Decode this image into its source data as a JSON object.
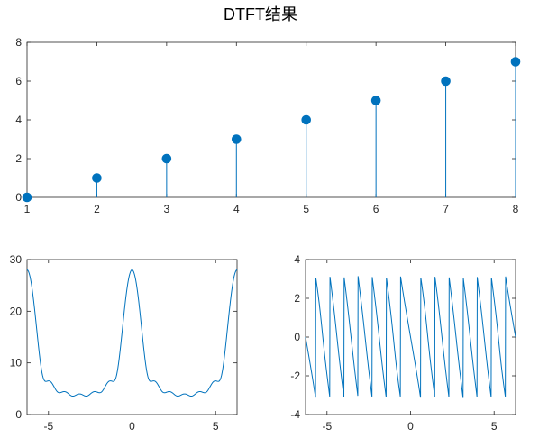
{
  "figure": {
    "title": "DTFT结果",
    "background": "#ffffff"
  },
  "colors": {
    "series": "#0072BD",
    "axis": "#262626"
  },
  "chart_data": [
    {
      "type": "stem",
      "title": "",
      "xlabel": "",
      "ylabel": "",
      "x": [
        1,
        2,
        3,
        4,
        5,
        6,
        7,
        8
      ],
      "y": [
        0,
        1,
        2,
        3,
        4,
        5,
        6,
        7
      ],
      "xlim": [
        1,
        8
      ],
      "ylim": [
        0,
        8
      ],
      "xticks": [
        "1",
        "2",
        "3",
        "4",
        "5",
        "6",
        "7",
        "8"
      ],
      "yticks": [
        "0",
        "2",
        "4",
        "6",
        "8"
      ],
      "grid": false,
      "legend": "none"
    },
    {
      "type": "line",
      "title": "",
      "xlabel": "",
      "ylabel": "",
      "description": "magnitude |X(w)| of the DTFT of x[n]=0..7, sampled over one interval",
      "xlim": [
        -6.2832,
        6.2832
      ],
      "ylim": [
        0,
        30
      ],
      "xticks": [
        "-5",
        "0",
        "5"
      ],
      "yticks": [
        "0",
        "10",
        "20",
        "30"
      ],
      "series": [
        {
          "x": [],
          "y": []
        }
      ],
      "grid": false,
      "legend": "none"
    },
    {
      "type": "line",
      "title": "",
      "xlabel": "",
      "ylabel": "",
      "description": "phase angle of the DTFT, wrapping sawtooth",
      "xlim": [
        -6.2832,
        6.2832
      ],
      "ylim": [
        -4,
        4
      ],
      "xticks": [
        "-5",
        "0",
        "5"
      ],
      "yticks": [
        "-4",
        "-2",
        "0",
        "2",
        "4"
      ],
      "series": [
        {
          "x": [],
          "y": []
        }
      ],
      "grid": false,
      "legend": "none"
    }
  ]
}
